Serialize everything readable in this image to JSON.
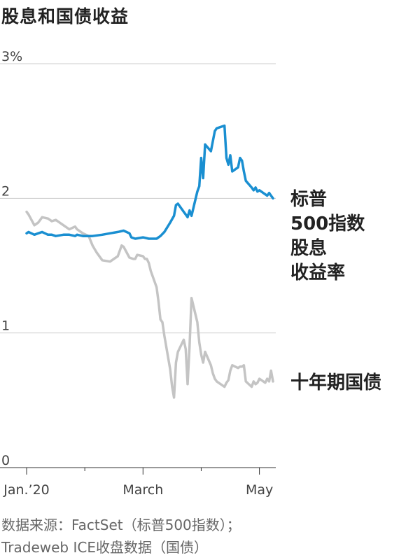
{
  "title": "股息和国债收益",
  "source": {
    "line1": "数据来源：FactSet（标普500指数）；",
    "line2": "Tradeweb ICE收盘数据（国债）"
  },
  "colors": {
    "sp500": "#1a8fd1",
    "treasury": "#c4c4c4",
    "grid": "#cccccc",
    "axis": "#333333",
    "label": "#222222"
  },
  "chart_data": {
    "type": "line",
    "x_axis": {
      "start": "2020-01-02",
      "end": "2020-05-08",
      "ticks": [
        {
          "date": "2020-01-02",
          "label": "Jan.’20"
        },
        {
          "date": "2020-03-02",
          "label": "March"
        },
        {
          "date": "2020-05-01",
          "label": "May"
        }
      ],
      "minor_ticks": [
        "2020-02-01",
        "2020-04-01"
      ]
    },
    "y_axis": {
      "ylim": [
        0,
        3
      ],
      "ticks": [
        {
          "value": 0,
          "label": "0"
        },
        {
          "value": 1,
          "label": "1"
        },
        {
          "value": 2,
          "label": "2"
        },
        {
          "value": 3,
          "label": "3%"
        }
      ],
      "grid": true
    },
    "series": [
      {
        "name": "标普500指数股息收益率",
        "label_lines": [
          "标普",
          "500指数",
          "股息",
          "收益率"
        ],
        "points": [
          [
            "2020-01-02",
            1.74
          ],
          [
            "2020-01-03",
            1.75
          ],
          [
            "2020-01-06",
            1.73
          ],
          [
            "2020-01-08",
            1.74
          ],
          [
            "2020-01-10",
            1.75
          ],
          [
            "2020-01-13",
            1.73
          ],
          [
            "2020-01-15",
            1.73
          ],
          [
            "2020-01-17",
            1.72
          ],
          [
            "2020-01-21",
            1.73
          ],
          [
            "2020-01-24",
            1.73
          ],
          [
            "2020-01-27",
            1.72
          ],
          [
            "2020-01-28",
            1.73
          ],
          [
            "2020-01-31",
            1.72
          ],
          [
            "2020-02-05",
            1.72
          ],
          [
            "2020-02-10",
            1.73
          ],
          [
            "2020-02-14",
            1.74
          ],
          [
            "2020-02-18",
            1.75
          ],
          [
            "2020-02-21",
            1.76
          ],
          [
            "2020-02-24",
            1.74
          ],
          [
            "2020-02-25",
            1.71
          ],
          [
            "2020-02-27",
            1.7
          ],
          [
            "2020-03-02",
            1.71
          ],
          [
            "2020-03-05",
            1.7
          ],
          [
            "2020-03-09",
            1.7
          ],
          [
            "2020-03-11",
            1.72
          ],
          [
            "2020-03-13",
            1.75
          ],
          [
            "2020-03-16",
            1.82
          ],
          [
            "2020-03-18",
            1.87
          ],
          [
            "2020-03-19",
            1.95
          ],
          [
            "2020-03-20",
            1.96
          ],
          [
            "2020-03-23",
            1.9
          ],
          [
            "2020-03-24",
            1.88
          ],
          [
            "2020-03-25",
            1.86
          ],
          [
            "2020-03-26",
            1.91
          ],
          [
            "2020-03-27",
            1.87
          ],
          [
            "2020-03-30",
            2.05
          ],
          [
            "2020-03-31",
            2.09
          ],
          [
            "2020-04-01",
            2.3
          ],
          [
            "2020-04-02",
            2.15
          ],
          [
            "2020-04-03",
            2.4
          ],
          [
            "2020-04-06",
            2.35
          ],
          [
            "2020-04-08",
            2.5
          ],
          [
            "2020-04-09",
            2.52
          ],
          [
            "2020-04-13",
            2.54
          ],
          [
            "2020-04-14",
            2.3
          ],
          [
            "2020-04-15",
            2.25
          ],
          [
            "2020-04-16",
            2.32
          ],
          [
            "2020-04-17",
            2.2
          ],
          [
            "2020-04-20",
            2.23
          ],
          [
            "2020-04-21",
            2.3
          ],
          [
            "2020-04-22",
            2.28
          ],
          [
            "2020-04-23",
            2.2
          ],
          [
            "2020-04-24",
            2.13
          ],
          [
            "2020-04-27",
            2.08
          ],
          [
            "2020-04-28",
            2.06
          ],
          [
            "2020-04-29",
            2.08
          ],
          [
            "2020-04-30",
            2.05
          ],
          [
            "2020-05-01",
            2.06
          ],
          [
            "2020-05-04",
            2.03
          ],
          [
            "2020-05-05",
            2.02
          ],
          [
            "2020-05-06",
            2.04
          ],
          [
            "2020-05-07",
            2.02
          ],
          [
            "2020-05-08",
            2.0
          ]
        ]
      },
      {
        "name": "十年期国债",
        "label_lines": [
          "十年期国债"
        ],
        "points": [
          [
            "2020-01-02",
            1.9
          ],
          [
            "2020-01-03",
            1.88
          ],
          [
            "2020-01-06",
            1.8
          ],
          [
            "2020-01-08",
            1.82
          ],
          [
            "2020-01-10",
            1.86
          ],
          [
            "2020-01-13",
            1.85
          ],
          [
            "2020-01-15",
            1.83
          ],
          [
            "2020-01-17",
            1.84
          ],
          [
            "2020-01-21",
            1.8
          ],
          [
            "2020-01-24",
            1.77
          ],
          [
            "2020-01-27",
            1.79
          ],
          [
            "2020-01-28",
            1.77
          ],
          [
            "2020-01-31",
            1.74
          ],
          [
            "2020-02-03",
            1.72
          ],
          [
            "2020-02-05",
            1.65
          ],
          [
            "2020-02-07",
            1.6
          ],
          [
            "2020-02-10",
            1.54
          ],
          [
            "2020-02-14",
            1.53
          ],
          [
            "2020-02-18",
            1.57
          ],
          [
            "2020-02-20",
            1.65
          ],
          [
            "2020-02-21",
            1.64
          ],
          [
            "2020-02-24",
            1.56
          ],
          [
            "2020-02-26",
            1.55
          ],
          [
            "2020-02-27",
            1.55
          ],
          [
            "2020-02-28",
            1.58
          ],
          [
            "2020-03-02",
            1.57
          ],
          [
            "2020-03-03",
            1.55
          ],
          [
            "2020-03-04",
            1.55
          ],
          [
            "2020-03-05",
            1.52
          ],
          [
            "2020-03-06",
            1.46
          ],
          [
            "2020-03-09",
            1.34
          ],
          [
            "2020-03-10",
            1.23
          ],
          [
            "2020-03-11",
            1.1
          ],
          [
            "2020-03-12",
            1.08
          ],
          [
            "2020-03-13",
            0.98
          ],
          [
            "2020-03-16",
            0.73
          ],
          [
            "2020-03-17",
            0.6
          ],
          [
            "2020-03-18",
            0.52
          ],
          [
            "2020-03-19",
            0.78
          ],
          [
            "2020-03-20",
            0.86
          ],
          [
            "2020-03-23",
            0.95
          ],
          [
            "2020-03-24",
            0.88
          ],
          [
            "2020-03-25",
            0.62
          ],
          [
            "2020-03-26",
            0.9
          ],
          [
            "2020-03-27",
            1.26
          ],
          [
            "2020-03-30",
            1.08
          ],
          [
            "2020-03-31",
            0.93
          ],
          [
            "2020-04-01",
            0.84
          ],
          [
            "2020-04-02",
            0.78
          ],
          [
            "2020-04-03",
            0.86
          ],
          [
            "2020-04-06",
            0.76
          ],
          [
            "2020-04-07",
            0.7
          ],
          [
            "2020-04-08",
            0.66
          ],
          [
            "2020-04-09",
            0.64
          ],
          [
            "2020-04-13",
            0.6
          ],
          [
            "2020-04-14",
            0.63
          ],
          [
            "2020-04-15",
            0.65
          ],
          [
            "2020-04-16",
            0.72
          ],
          [
            "2020-04-17",
            0.76
          ],
          [
            "2020-04-20",
            0.74
          ],
          [
            "2020-04-21",
            0.75
          ],
          [
            "2020-04-22",
            0.75
          ],
          [
            "2020-04-23",
            0.76
          ],
          [
            "2020-04-24",
            0.64
          ],
          [
            "2020-04-27",
            0.6
          ],
          [
            "2020-04-28",
            0.64
          ],
          [
            "2020-04-29",
            0.62
          ],
          [
            "2020-04-30",
            0.63
          ],
          [
            "2020-05-01",
            0.66
          ],
          [
            "2020-05-04",
            0.63
          ],
          [
            "2020-05-05",
            0.66
          ],
          [
            "2020-05-06",
            0.64
          ],
          [
            "2020-05-07",
            0.72
          ],
          [
            "2020-05-08",
            0.64
          ]
        ]
      }
    ]
  }
}
